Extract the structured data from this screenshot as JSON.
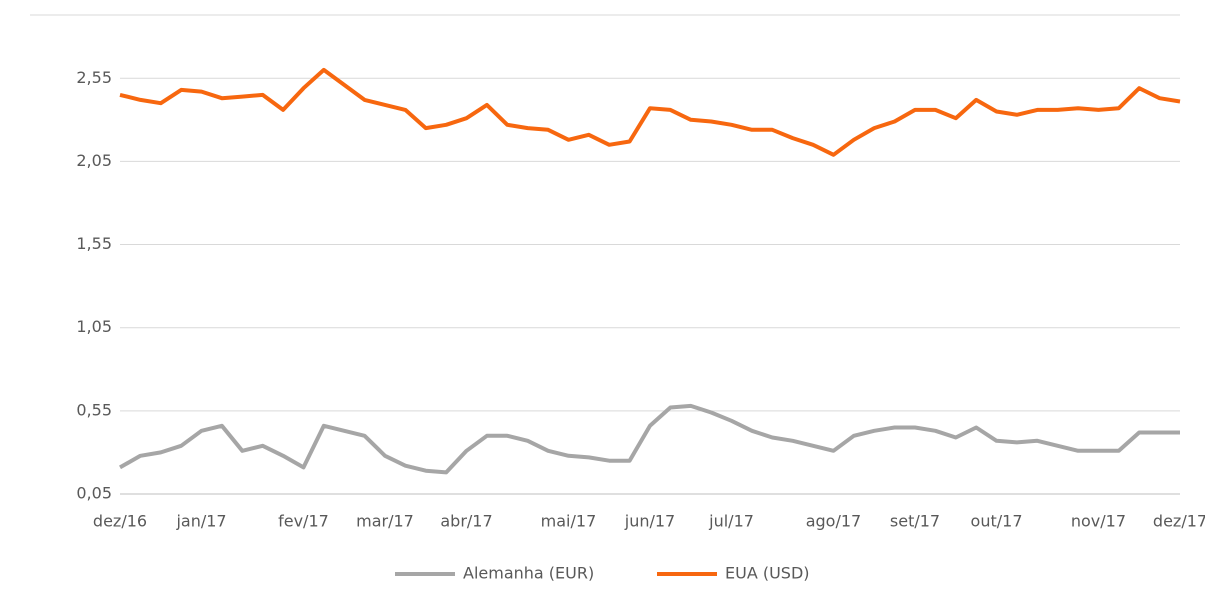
{
  "chart_data": {
    "type": "line",
    "categories": [
      "dez/16",
      null,
      null,
      null,
      "jan/17",
      null,
      null,
      null,
      null,
      "fev/17",
      null,
      null,
      null,
      "mar/17",
      null,
      null,
      null,
      "abr/17",
      null,
      null,
      null,
      null,
      "mai/17",
      null,
      null,
      null,
      "jun/17",
      null,
      null,
      null,
      "jul/17",
      null,
      null,
      null,
      null,
      "ago/17",
      null,
      null,
      null,
      "set/17",
      null,
      null,
      null,
      "out/17",
      null,
      null,
      null,
      null,
      "nov/17",
      null,
      null,
      null,
      "dez/17"
    ],
    "series": [
      {
        "name": "Alemanha (EUR)",
        "color": "#a6a6a6",
        "values": [
          0.21,
          0.28,
          0.3,
          0.34,
          0.43,
          0.46,
          0.31,
          0.34,
          0.28,
          0.21,
          0.46,
          0.43,
          0.4,
          0.28,
          0.22,
          0.19,
          0.18,
          0.31,
          0.4,
          0.4,
          0.37,
          0.31,
          0.28,
          0.27,
          0.25,
          0.25,
          0.46,
          0.57,
          0.58,
          0.54,
          0.49,
          0.43,
          0.39,
          0.37,
          0.34,
          0.31,
          0.4,
          0.43,
          0.45,
          0.45,
          0.43,
          0.39,
          0.45,
          0.37,
          0.36,
          0.37,
          0.34,
          0.31,
          0.31,
          0.31,
          0.42,
          0.42,
          0.42
        ]
      },
      {
        "name": "EUA (USD)",
        "color": "#f7670f",
        "values": [
          2.45,
          2.42,
          2.4,
          2.48,
          2.47,
          2.43,
          2.44,
          2.45,
          2.36,
          2.49,
          2.6,
          2.51,
          2.42,
          2.39,
          2.36,
          2.25,
          2.27,
          2.31,
          2.39,
          2.27,
          2.25,
          2.24,
          2.18,
          2.21,
          2.15,
          2.17,
          2.37,
          2.36,
          2.3,
          2.29,
          2.27,
          2.24,
          2.24,
          2.19,
          2.15,
          2.09,
          2.18,
          2.25,
          2.29,
          2.36,
          2.36,
          2.31,
          2.42,
          2.35,
          2.33,
          2.36,
          2.36,
          2.37,
          2.36,
          2.37,
          2.49,
          2.43,
          2.41
        ]
      }
    ],
    "ylim": [
      0.05,
      2.75
    ],
    "yticks": [
      {
        "value": 0.05,
        "label": "0,05"
      },
      {
        "value": 0.55,
        "label": "0,55"
      },
      {
        "value": 1.05,
        "label": "1,05"
      },
      {
        "value": 1.55,
        "label": "1,55"
      },
      {
        "value": 2.05,
        "label": "2,05"
      },
      {
        "value": 2.55,
        "label": "2,55"
      }
    ],
    "grid": true,
    "legend": "bottom"
  }
}
